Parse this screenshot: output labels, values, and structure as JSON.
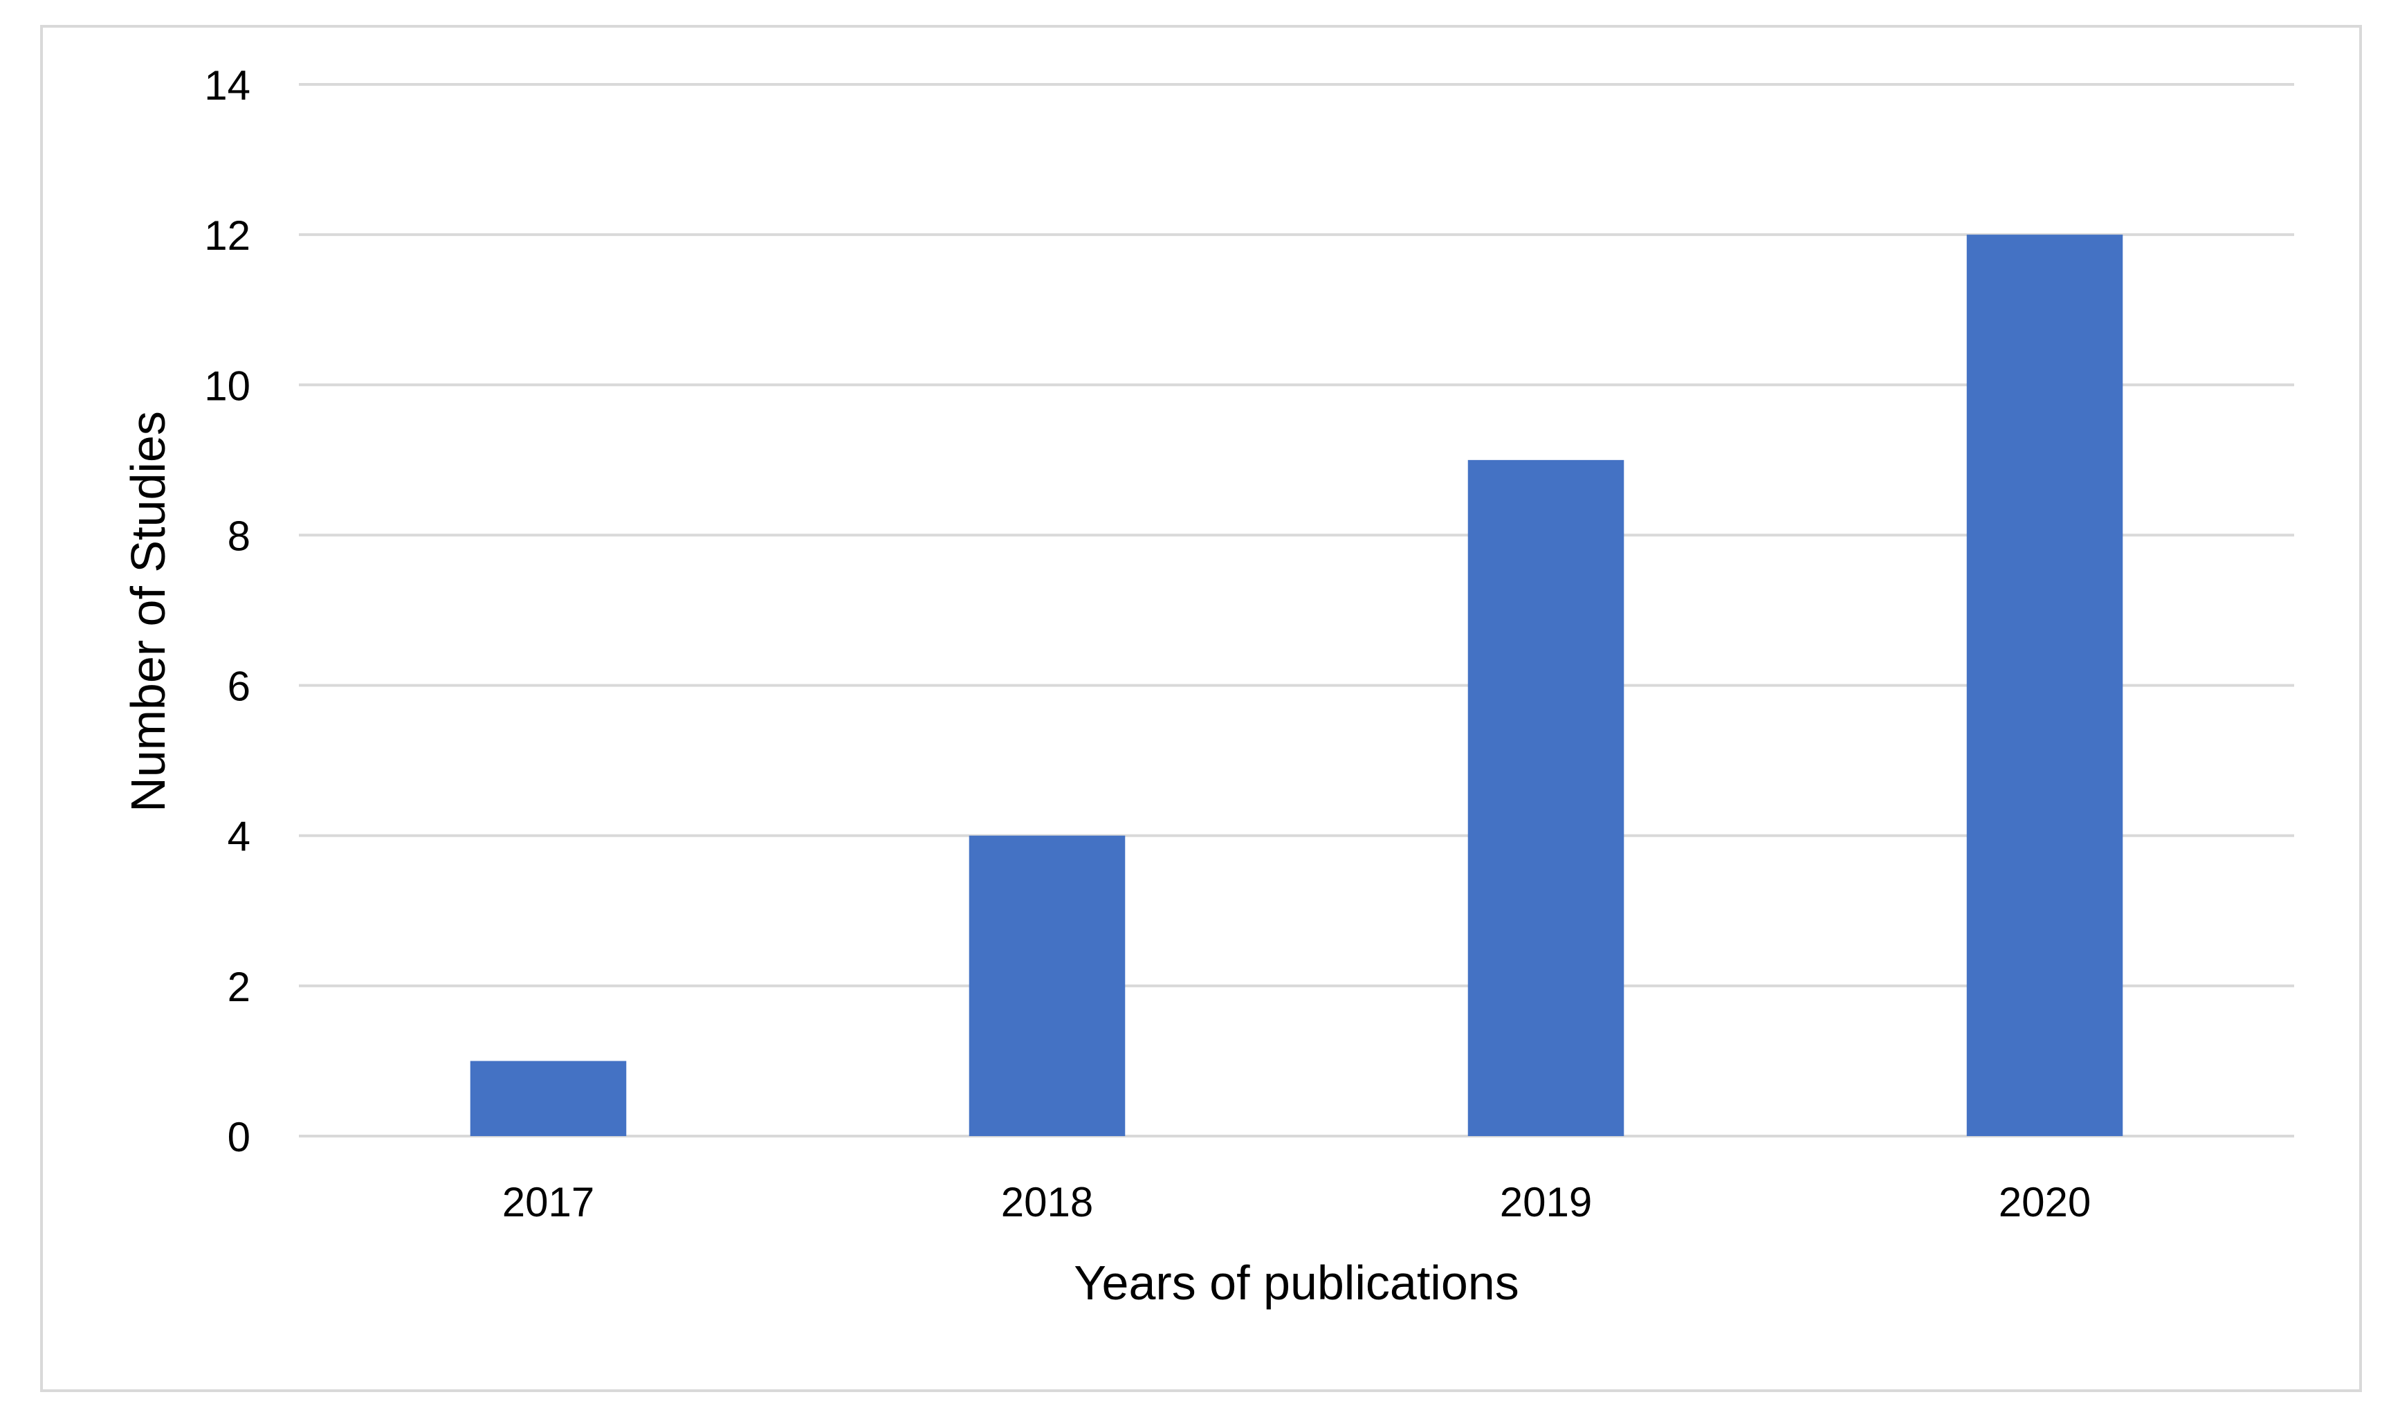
{
  "chart_data": {
    "type": "bar",
    "categories": [
      "2017",
      "2018",
      "2019",
      "2020"
    ],
    "values": [
      1,
      4,
      9,
      12
    ],
    "title": "",
    "xlabel": "Years of publications",
    "ylabel": "Number of Studies",
    "ylim": [
      0,
      14
    ],
    "yticks": [
      0,
      2,
      4,
      6,
      8,
      10,
      12,
      14
    ],
    "grid": true,
    "legend": "none",
    "bar_color": "#4472C4",
    "gridline_color": "#D9D9D9",
    "frame_color": "#D9D9D9"
  }
}
